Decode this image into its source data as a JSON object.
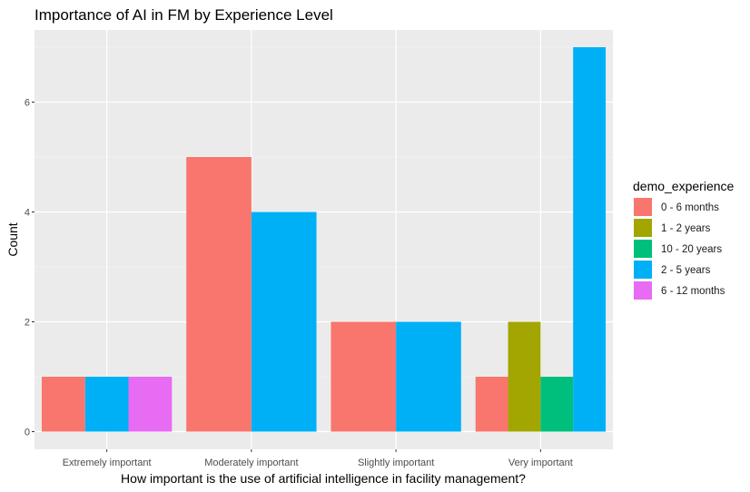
{
  "chart_data": {
    "type": "bar",
    "title": "Importance of AI in FM by Experience Level",
    "xlabel": "How important is the use of artificial intelligence in facility management?",
    "ylabel": "Count",
    "categories": [
      "Extremely important",
      "Moderately important",
      "Slightly important",
      "Very important"
    ],
    "ylim": [
      0,
      7
    ],
    "yticks": [
      0,
      2,
      4,
      6
    ],
    "grid": true,
    "legend": {
      "title": "demo_experience",
      "position": "right"
    },
    "series": [
      {
        "name": "0 - 6 months",
        "color": "#F8766D",
        "values": [
          1,
          5,
          2,
          1
        ]
      },
      {
        "name": "1 - 2 years",
        "color": "#A3A500",
        "values": [
          null,
          null,
          null,
          2
        ]
      },
      {
        "name": "10 - 20 years",
        "color": "#00BF7D",
        "values": [
          null,
          null,
          null,
          1
        ]
      },
      {
        "name": "2 - 5 years",
        "color": "#00B0F6",
        "values": [
          1,
          4,
          2,
          7
        ]
      },
      {
        "name": "6 - 12 months",
        "color": "#E76BF3",
        "values": [
          1,
          null,
          null,
          null
        ]
      }
    ]
  }
}
